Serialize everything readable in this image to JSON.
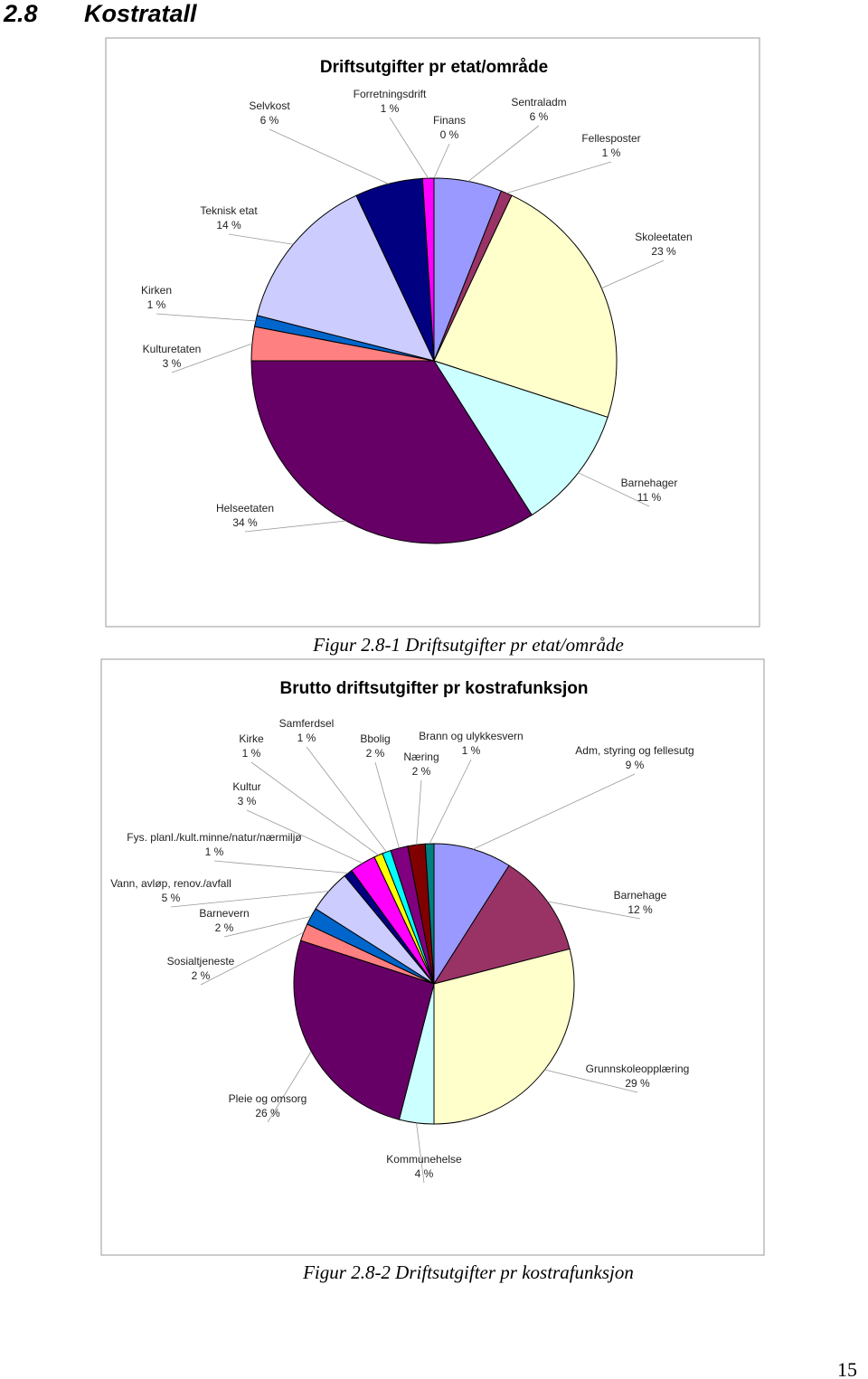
{
  "heading": {
    "number": "2.8",
    "title": "Kostratall"
  },
  "chart_data": [
    {
      "type": "pie",
      "title": "Driftsutgifter pr etat/område",
      "categories": [
        "Sentraladm",
        "Fellesposter",
        "Skoleetaten",
        "Barnehager",
        "Helseetaten",
        "Kulturetaten",
        "Kirken",
        "Teknisk etat",
        "Selvkost",
        "Forretningsdrift",
        "Finans"
      ],
      "values": [
        6,
        1,
        23,
        11,
        34,
        3,
        1,
        14,
        6,
        1,
        0
      ],
      "value_labels": [
        "6 %",
        "1 %",
        "23 %",
        "11 %",
        "34 %",
        "3 %",
        "1 %",
        "14 %",
        "6 %",
        "1 %",
        "0 %"
      ],
      "colors": [
        "#9999ff",
        "#993366",
        "#ffffcc",
        "#ccffff",
        "#660066",
        "#ff8080",
        "#0066cc",
        "#ccccff",
        "#000080",
        "#ff00ff",
        "#ffff00"
      ]
    },
    {
      "type": "pie",
      "title": "Brutto driftsutgifter pr kostrafunksjon",
      "categories": [
        "Adm, styring og fellesutg",
        "Barnehage",
        "Grunnskoleopplæring",
        "Kommunehelse",
        "Pleie og omsorg",
        "Sosialtjeneste",
        "Barnevern",
        "Vann, avløp, renov./avfall",
        "Fys. planl./kult.minne/natur/nærmiljø",
        "Kultur",
        "Kirke",
        "Samferdsel",
        "Bbolig",
        "Næring",
        "Brann og ulykkesvern"
      ],
      "values": [
        9,
        12,
        29,
        4,
        26,
        2,
        2,
        5,
        1,
        3,
        1,
        1,
        2,
        2,
        1
      ],
      "value_labels": [
        "9 %",
        "12 %",
        "29 %",
        "4 %",
        "26 %",
        "2 %",
        "2 %",
        "5 %",
        "1 %",
        "3 %",
        "1 %",
        "1 %",
        "2 %",
        "2 %",
        "1 %"
      ],
      "colors": [
        "#9999ff",
        "#993366",
        "#ffffcc",
        "#ccffff",
        "#660066",
        "#ff8080",
        "#0066cc",
        "#ccccff",
        "#000080",
        "#ff00ff",
        "#ffff00",
        "#00ffff",
        "#800080",
        "#800000",
        "#008080"
      ]
    }
  ],
  "captions": [
    "Figur 2.8-1 Driftsutgifter pr etat/område",
    "Figur 2.8-2 Driftsutgifter pr kostrafunksjon"
  ],
  "page_number": "15"
}
